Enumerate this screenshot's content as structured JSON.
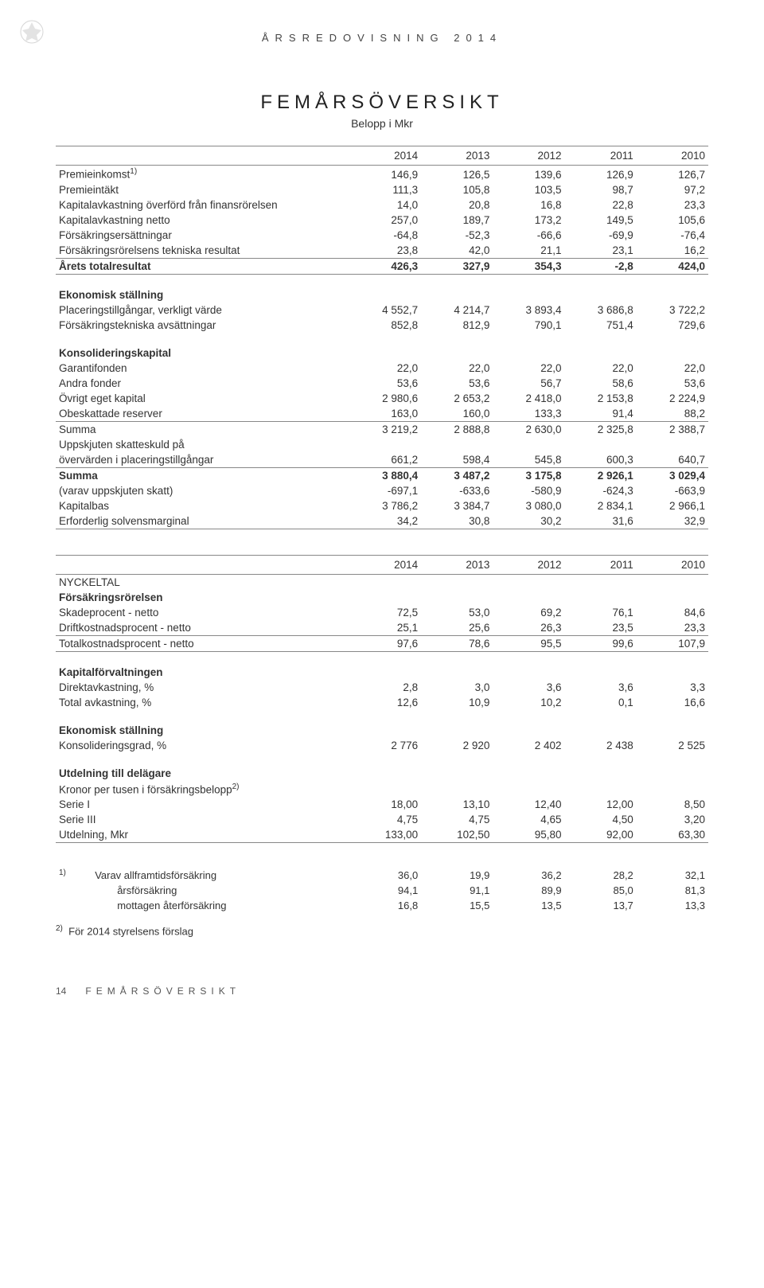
{
  "header": "ÅRSREDOVISNING 2014",
  "title": "FEMÅRSÖVERSIKT",
  "subtitle": "Belopp i Mkr",
  "years": [
    "2014",
    "2013",
    "2012",
    "2011",
    "2010"
  ],
  "rows1": [
    {
      "label": "Premieinkomst",
      "sup": "1)",
      "v": [
        "146,9",
        "126,5",
        "139,6",
        "126,9",
        "126,7"
      ]
    },
    {
      "label": "Premieintäkt",
      "v": [
        "111,3",
        "105,8",
        "103,5",
        "98,7",
        "97,2"
      ]
    },
    {
      "label": "Kapitalavkastning överförd från finansrörelsen",
      "v": [
        "14,0",
        "20,8",
        "16,8",
        "22,8",
        "23,3"
      ]
    },
    {
      "label": "Kapitalavkastning netto",
      "v": [
        "257,0",
        "189,7",
        "173,2",
        "149,5",
        "105,6"
      ]
    },
    {
      "label": "Försäkringsersättningar",
      "v": [
        "-64,8",
        "-52,3",
        "-66,6",
        "-69,9",
        "-76,4"
      ]
    },
    {
      "label": "Försäkringsrörelsens tekniska resultat",
      "v": [
        "23,8",
        "42,0",
        "21,1",
        "23,1",
        "16,2"
      ]
    }
  ],
  "arets": {
    "label": "Årets totalresultat",
    "v": [
      "426,3",
      "327,9",
      "354,3",
      "-2,8",
      "424,0"
    ]
  },
  "ekon_head": "Ekonomisk ställning",
  "ekon": [
    {
      "label": "Placeringstillgångar, verkligt värde",
      "v": [
        "4 552,7",
        "4 214,7",
        "3 893,4",
        "3 686,8",
        "3 722,2"
      ]
    },
    {
      "label": "Försäkringstekniska avsättningar",
      "v": [
        "852,8",
        "812,9",
        "790,1",
        "751,4",
        "729,6"
      ]
    }
  ],
  "kons_head": "Konsolideringskapital",
  "kons": [
    {
      "label": "Garantifonden",
      "v": [
        "22,0",
        "22,0",
        "22,0",
        "22,0",
        "22,0"
      ]
    },
    {
      "label": "Andra fonder",
      "v": [
        "53,6",
        "53,6",
        "56,7",
        "58,6",
        "53,6"
      ]
    },
    {
      "label": "Övrigt eget kapital",
      "v": [
        "2 980,6",
        "2 653,2",
        "2 418,0",
        "2 153,8",
        "2 224,9"
      ]
    },
    {
      "label": "Obeskattade reserver",
      "v": [
        "163,0",
        "160,0",
        "133,3",
        "91,4",
        "88,2"
      ]
    }
  ],
  "summa1": {
    "label": "Summa",
    "v": [
      "3 219,2",
      "2 888,8",
      "2 630,0",
      "2 325,8",
      "2 388,7"
    ]
  },
  "uppskj_label_a": "Uppskjuten skatteskuld på",
  "uppskj": {
    "label": "övervärden i placeringstillgångar",
    "v": [
      "661,2",
      "598,4",
      "545,8",
      "600,3",
      "640,7"
    ]
  },
  "summa2": [
    {
      "label": "Summa",
      "v": [
        "3 880,4",
        "3 487,2",
        "3 175,8",
        "2 926,1",
        "3 029,4"
      ],
      "bold": true
    },
    {
      "label": " (varav uppskjuten skatt)",
      "v": [
        "-697,1",
        "-633,6",
        "-580,9",
        "-624,3",
        "-663,9"
      ]
    },
    {
      "label": "Kapitalbas",
      "v": [
        "3 786,2",
        "3 384,7",
        "3 080,0",
        "2 834,1",
        "2 966,1"
      ]
    },
    {
      "label": "Erforderlig solvensmarginal",
      "v": [
        "34,2",
        "30,8",
        "30,2",
        "31,6",
        "32,9"
      ]
    }
  ],
  "nyckel_head": "NYCKELTAL",
  "forsak_head": "Försäkringsrörelsen",
  "forsak": [
    {
      "label": "Skadeprocent - netto",
      "v": [
        "72,5",
        "53,0",
        "69,2",
        "76,1",
        "84,6"
      ]
    },
    {
      "label": "Driftkostnadsprocent - netto",
      "v": [
        "25,1",
        "25,6",
        "26,3",
        "23,5",
        "23,3"
      ]
    }
  ],
  "totkost": {
    "label": "Totalkostnadsprocent - netto",
    "v": [
      "97,6",
      "78,6",
      "95,5",
      "99,6",
      "107,9"
    ]
  },
  "kapf_head": "Kapitalförvaltningen",
  "kapf": [
    {
      "label": "Direktavkastning, %",
      "v": [
        "2,8",
        "3,0",
        "3,6",
        "3,6",
        "3,3"
      ]
    },
    {
      "label": "Total avkastning, %",
      "v": [
        "12,6",
        "10,9",
        "10,2",
        "0,1",
        "16,6"
      ]
    }
  ],
  "ekon2_head": "Ekonomisk ställning",
  "ekon2": {
    "label": "Konsolideringsgrad, %",
    "v": [
      "2 776",
      "2 920",
      "2 402",
      "2 438",
      "2 525"
    ]
  },
  "utd_head": "Utdelning till delägare",
  "utd_sub": "Kronor per tusen i försäkringsbelopp",
  "utd_sup": "2)",
  "utd": [
    {
      "label": "Serie I",
      "v": [
        "18,00",
        "13,10",
        "12,40",
        "12,00",
        "8,50"
      ]
    },
    {
      "label": "Serie III",
      "v": [
        "4,75",
        "4,75",
        "4,65",
        "4,50",
        "3,20"
      ]
    },
    {
      "label": "Utdelning, Mkr",
      "v": [
        "133,00",
        "102,50",
        "95,80",
        "92,00",
        "63,30"
      ]
    }
  ],
  "fn1_items": [
    {
      "label": "Varav allframtidsförsäkring",
      "v": [
        "36,0",
        "19,9",
        "36,2",
        "28,2",
        "32,1"
      ]
    },
    {
      "label": "årsförsäkring",
      "v": [
        "94,1",
        "91,1",
        "89,9",
        "85,0",
        "81,3"
      ]
    },
    {
      "label": "mottagen återförsäkring",
      "v": [
        "16,8",
        "15,5",
        "13,5",
        "13,7",
        "13,3"
      ]
    }
  ],
  "fn1_marker": "1)",
  "fn2_marker": "2)",
  "fn2_text": "För 2014 styrelsens förslag",
  "footer_page": "14",
  "footer_title": "FEMÅRSÖVERSIKT"
}
